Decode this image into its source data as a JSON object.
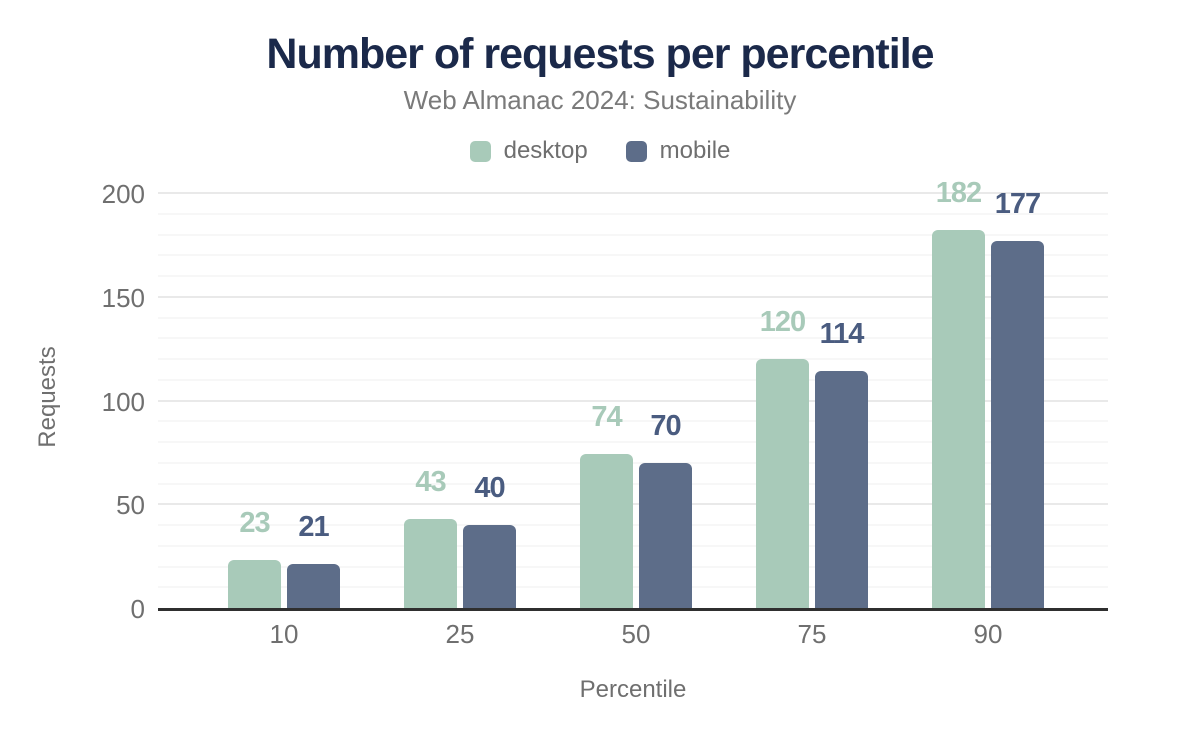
{
  "page": {
    "background": "#ffffff"
  },
  "chart_data": {
    "type": "bar",
    "title": "Number of requests per percentile",
    "subtitle": "Web Almanac 2024: Sustainability",
    "categories": [
      "10",
      "25",
      "50",
      "75",
      "90"
    ],
    "series": [
      {
        "name": "desktop",
        "values": [
          23,
          43,
          74,
          120,
          182
        ],
        "color": "#a8cab9",
        "label_color": "#a8cab9"
      },
      {
        "name": "mobile",
        "values": [
          21,
          40,
          70,
          114,
          177
        ],
        "color": "#5d6d89",
        "label_color": "#4a5c80"
      }
    ],
    "xlabel": "Percentile",
    "ylabel": "Requests",
    "ylim": [
      0,
      200
    ],
    "yticks": [
      0,
      50,
      100,
      150,
      200
    ],
    "grid": {
      "minor_step": 10,
      "major_step": 50,
      "on": true
    },
    "legend_position": "top",
    "show_value_labels": true
  },
  "colors": {
    "title": "#1b294a",
    "subtitle": "#7a7a7a",
    "axis_text": "#6f6f6f",
    "baseline": "#2f2f2f",
    "grid_minor": "#f7f7f7",
    "grid_major": "#e9e9e9"
  }
}
